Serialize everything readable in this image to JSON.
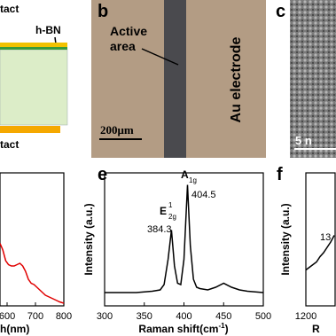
{
  "panels": {
    "a": {
      "contact_top": "tact",
      "hbn": "h-BN",
      "contact_bottom": "tact"
    },
    "b": {
      "label": "b",
      "active_area": [
        "Active",
        "area"
      ],
      "electrode": "Au electrode",
      "scale_bar": "200μm"
    },
    "c": {
      "label": "c",
      "scale_bar": "5 n"
    }
  },
  "chart_data": [
    {
      "type": "line",
      "x_label": "h(nm)",
      "color": "#e00000",
      "x": [
        575,
        585,
        595,
        605,
        615,
        625,
        635,
        645,
        655,
        665,
        675,
        685,
        695,
        705,
        715,
        725,
        735,
        745,
        755,
        765,
        775,
        785,
        800
      ],
      "values": [
        0.47,
        0.42,
        0.34,
        0.31,
        0.3,
        0.3,
        0.31,
        0.32,
        0.3,
        0.26,
        0.2,
        0.17,
        0.16,
        0.14,
        0.12,
        0.1,
        0.08,
        0.07,
        0.06,
        0.05,
        0.04,
        0.03,
        0.02
      ],
      "xlim": [
        575,
        800
      ],
      "xticks": [
        600,
        700,
        800
      ],
      "ylim": [
        0,
        1
      ]
    },
    {
      "type": "line",
      "label": "e",
      "y_label": "Intensity (a.u.)",
      "x_label": {
        "text": "Raman shift(cm",
        "sup": "-1",
        "end": ")"
      },
      "color": "#000000",
      "x": [
        300,
        320,
        340,
        360,
        370,
        375,
        380,
        384.3,
        388,
        392,
        396,
        400,
        404.5,
        408,
        412,
        416,
        420,
        430,
        440,
        450,
        460,
        470,
        480,
        500
      ],
      "values": [
        0.1,
        0.1,
        0.1,
        0.11,
        0.12,
        0.16,
        0.35,
        0.57,
        0.3,
        0.17,
        0.16,
        0.35,
        0.91,
        0.45,
        0.2,
        0.14,
        0.13,
        0.12,
        0.14,
        0.17,
        0.14,
        0.12,
        0.11,
        0.1
      ],
      "xlim": [
        300,
        500
      ],
      "xticks": [
        300,
        350,
        400,
        450,
        500
      ],
      "ylim": [
        0,
        1
      ],
      "annotations": {
        "e2g": {
          "base": "E",
          "sup": "1",
          "sub": "2g",
          "value": "384.3"
        },
        "a1g": {
          "base": "A",
          "sub": "1g",
          "value": "404.5"
        }
      }
    },
    {
      "type": "line",
      "label": "f",
      "y_label": "Intensity (a.u.)",
      "x_label": "R",
      "color": "#000000",
      "x": [
        1200,
        1210,
        1220,
        1230,
        1240,
        1250,
        1260,
        1270,
        1280
      ],
      "values": [
        0.27,
        0.29,
        0.31,
        0.33,
        0.37,
        0.4,
        0.44,
        0.48,
        0.53
      ],
      "xlim": [
        1200,
        1285
      ],
      "xticks": [
        1200
      ],
      "ylim": [
        0,
        1
      ],
      "annotation": "13"
    }
  ]
}
